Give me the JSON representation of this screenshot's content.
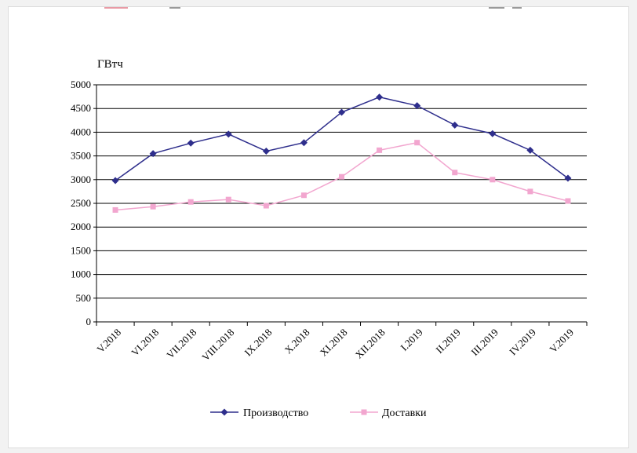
{
  "chart_data": {
    "type": "line",
    "ylabel": "ГВтч",
    "ylim": [
      0,
      5000
    ],
    "yticks": [
      0,
      500,
      1000,
      1500,
      2000,
      2500,
      3000,
      3500,
      4000,
      4500,
      5000
    ],
    "categories": [
      "V.2018",
      "VI.2018",
      "VII.2018",
      "VIII.2018",
      "IX.2018",
      "X.2018",
      "XI.2018",
      "XII.2018",
      "I.2019",
      "II.2019",
      "III.2019",
      "IV.2019",
      "V.2019"
    ],
    "series": [
      {
        "name": "Производство",
        "color": "#2e2e8c",
        "marker": "diamond",
        "values": [
          2980,
          3550,
          3770,
          3960,
          3600,
          3780,
          4420,
          4740,
          4560,
          4150,
          3970,
          3620,
          3030
        ]
      },
      {
        "name": "Доставки",
        "color": "#f2a6cf",
        "marker": "square",
        "values": [
          2360,
          2430,
          2530,
          2580,
          2450,
          2670,
          3060,
          3620,
          3780,
          3150,
          3000,
          2750,
          2550
        ]
      }
    ],
    "grid": true,
    "legend": "bottom"
  }
}
